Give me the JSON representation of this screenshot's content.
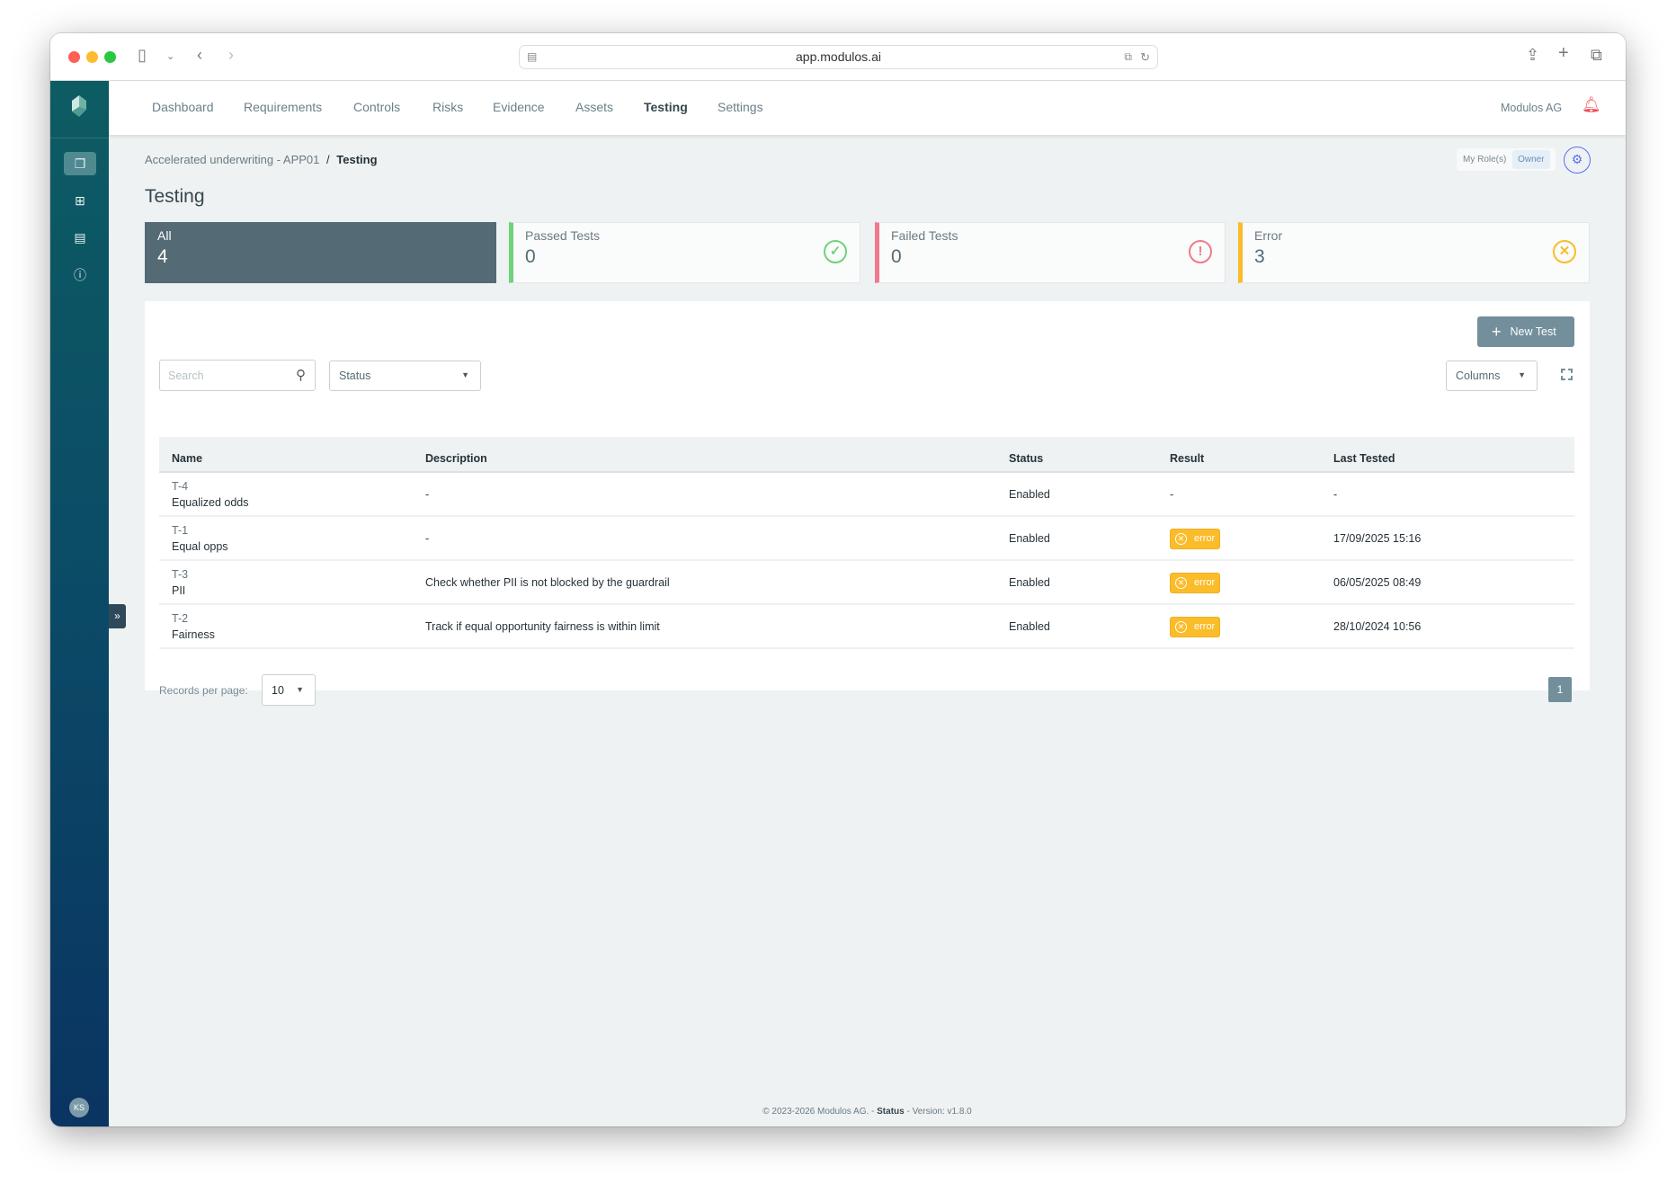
{
  "browser": {
    "url": "app.modulos.ai"
  },
  "nav": {
    "items": [
      "Dashboard",
      "Requirements",
      "Controls",
      "Risks",
      "Evidence",
      "Assets",
      "Testing",
      "Settings"
    ],
    "active": "Testing",
    "org": "Modulos AG"
  },
  "breadcrumb": {
    "parent": "Accelerated underwriting - APP01",
    "separator": "/",
    "current": "Testing"
  },
  "roles": {
    "label": "My Role(s)",
    "role": "Owner"
  },
  "page": {
    "title": "Testing"
  },
  "cards": [
    {
      "label": "All",
      "value": "4"
    },
    {
      "label": "Passed Tests",
      "value": "0",
      "color": "#6fd37a",
      "icon": "check-circle-icon"
    },
    {
      "label": "Failed Tests",
      "value": "0",
      "color": "#f07a8a",
      "icon": "exclamation-circle-icon"
    },
    {
      "label": "Error",
      "value": "3",
      "color": "#fbbc2a",
      "icon": "x-circle-icon"
    }
  ],
  "toolbar": {
    "new_test": "New Test",
    "search_placeholder": "Search",
    "status_filter": "Status",
    "columns": "Columns"
  },
  "table": {
    "headers": [
      "Name",
      "Description",
      "Status",
      "Result",
      "Last Tested"
    ],
    "rows": [
      {
        "id": "T-4",
        "name": "Equalized odds",
        "description": "-",
        "status": "Enabled",
        "result": "-",
        "last_tested": "-"
      },
      {
        "id": "T-1",
        "name": "Equal opps",
        "description": "-",
        "status": "Enabled",
        "result": "error",
        "last_tested": "17/09/2025 15:16"
      },
      {
        "id": "T-3",
        "name": "PII",
        "description": "Check whether PII is not blocked by the guardrail",
        "status": "Enabled",
        "result": "error",
        "last_tested": "06/05/2025 08:49"
      },
      {
        "id": "T-2",
        "name": "Fairness",
        "description": "Track if equal opportunity fairness is within limit",
        "status": "Enabled",
        "result": "error",
        "last_tested": "28/10/2024 10:56"
      }
    ]
  },
  "pagination": {
    "records_label": "Records per page:",
    "per_page": "10",
    "page": "1"
  },
  "footer": {
    "copyright": "© 2023-2026 Modulos AG. -",
    "status": "Status",
    "version": "- Version: v1.8.0"
  },
  "user": {
    "initials": "KS"
  }
}
